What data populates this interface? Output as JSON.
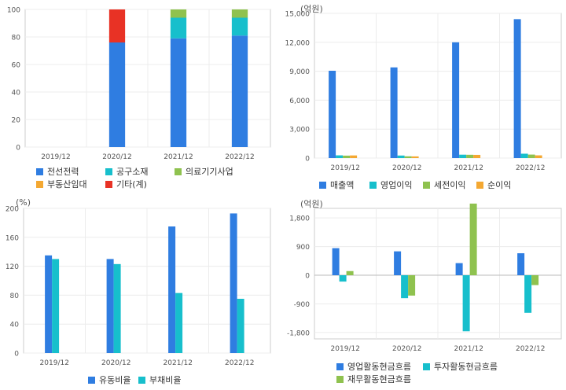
{
  "chart_data": [
    {
      "id": "composition",
      "type": "bar",
      "stacked": true,
      "unit": "",
      "categories": [
        "2019/12",
        "2020/12",
        "2021/12",
        "2022/12"
      ],
      "ylim": [
        0,
        100
      ],
      "yticks": [
        0,
        20,
        40,
        60,
        80,
        100
      ],
      "series": [
        {
          "name": "전선전력",
          "color": "#2f7de1",
          "values": [
            null,
            76,
            79,
            81
          ]
        },
        {
          "name": "공구소재",
          "color": "#17bfcc",
          "values": [
            null,
            0,
            15,
            13
          ]
        },
        {
          "name": "의료기기사업",
          "color": "#8fc24f",
          "values": [
            null,
            0,
            6,
            6
          ]
        },
        {
          "name": "부동산임대",
          "color": "#f4a832",
          "values": [
            null,
            0,
            0,
            0
          ]
        },
        {
          "name": "기타(계)",
          "color": "#e83225",
          "values": [
            null,
            24,
            0,
            0
          ]
        }
      ]
    },
    {
      "id": "income",
      "type": "bar",
      "unit": "(억원)",
      "categories": [
        "2019/12",
        "2020/12",
        "2021/12",
        "2022/12"
      ],
      "ylim": [
        0,
        15000
      ],
      "yticks": [
        0,
        3000,
        6000,
        9000,
        12000,
        15000
      ],
      "ytick_labels": [
        "0",
        "3,000",
        "6,000",
        "9,000",
        "12,000",
        "15,000"
      ],
      "series": [
        {
          "name": "매출액",
          "color": "#2f7de1",
          "values": [
            9050,
            9400,
            12000,
            14400
          ]
        },
        {
          "name": "영업이익",
          "color": "#17bfcc",
          "values": [
            280,
            260,
            350,
            450
          ]
        },
        {
          "name": "세전이익",
          "color": "#8fc24f",
          "values": [
            250,
            180,
            340,
            360
          ]
        },
        {
          "name": "순이익",
          "color": "#f4a832",
          "values": [
            270,
            170,
            330,
            280
          ]
        }
      ]
    },
    {
      "id": "ratios",
      "type": "bar",
      "unit": "(%)",
      "categories": [
        "2019/12",
        "2020/12",
        "2021/12",
        "2022/12"
      ],
      "ylim": [
        0,
        200
      ],
      "yticks": [
        0,
        40,
        80,
        120,
        160,
        200
      ],
      "series": [
        {
          "name": "유동비율",
          "color": "#2f7de1",
          "values": [
            135,
            130,
            175,
            193
          ]
        },
        {
          "name": "부채비율",
          "color": "#17bfcc",
          "values": [
            130,
            123,
            83,
            75
          ]
        }
      ]
    },
    {
      "id": "cashflow",
      "type": "bar",
      "unit": "(억원)",
      "categories": [
        "2019/12",
        "2020/12",
        "2021/12",
        "2022/12"
      ],
      "ylim": [
        -2000,
        2100
      ],
      "yticks": [
        -1800,
        -900,
        0,
        900,
        1800
      ],
      "ytick_labels": [
        "-1,800",
        "-900",
        "0",
        "900",
        "1,800"
      ],
      "series": [
        {
          "name": "영업활동현금흐름",
          "color": "#2f7de1",
          "values": [
            850,
            750,
            380,
            690
          ]
        },
        {
          "name": "투자활동현금흐름",
          "color": "#17bfcc",
          "values": [
            -200,
            -720,
            -1760,
            -1180
          ]
        },
        {
          "name": "재무활동현금흐름",
          "color": "#8fc24f",
          "values": [
            130,
            -640,
            2250,
            -310
          ]
        }
      ]
    }
  ]
}
